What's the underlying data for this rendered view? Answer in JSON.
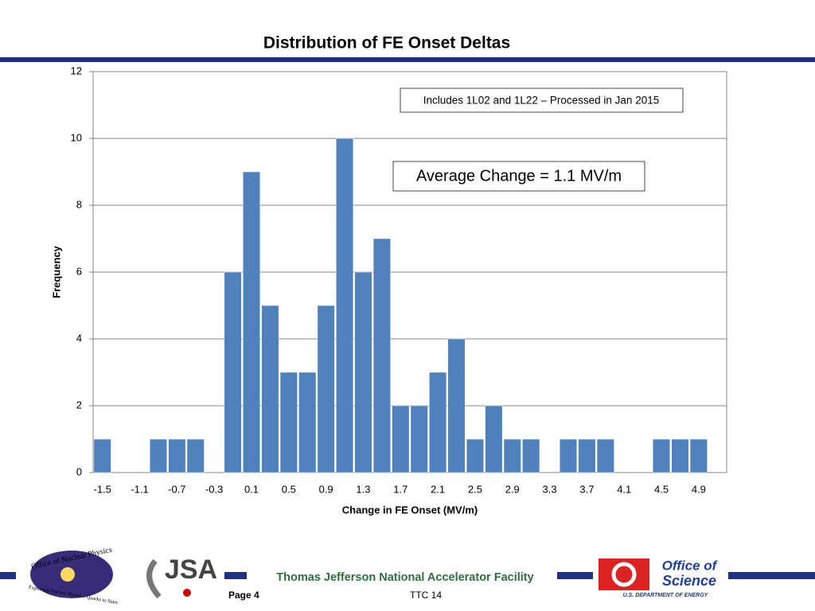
{
  "chart_data": {
    "type": "bar",
    "title": "Distribution of FE Onset Deltas",
    "xlabel": "Change in FE Onset (MV/m)",
    "ylabel": "Frequency",
    "categories": [
      "-1.5",
      null,
      "-1.1",
      null,
      "-0.7",
      null,
      "-0.3",
      null,
      "0.1",
      null,
      "0.5",
      null,
      "0.9",
      null,
      "1.3",
      null,
      "1.7",
      null,
      "2.1",
      null,
      "2.5",
      null,
      "2.9",
      null,
      "3.3",
      null,
      "3.7",
      null,
      "4.1",
      null,
      "4.5",
      null,
      "4.9",
      null
    ],
    "values": [
      1,
      0,
      0,
      1,
      1,
      1,
      0,
      6,
      9,
      5,
      3,
      3,
      5,
      10,
      6,
      7,
      2,
      2,
      3,
      4,
      1,
      2,
      1,
      1,
      0,
      1,
      1,
      1,
      0,
      0,
      1,
      1,
      1,
      0
    ],
    "color": "#4f81bd",
    "ylim": [
      0,
      12
    ],
    "yticks": [
      0,
      2,
      4,
      6,
      8,
      10,
      12
    ],
    "grid": true,
    "annotations": [
      "Includes 1L02 and 1L22 – Processed in Jan 2015",
      "Average Change = 1.1 MV/m"
    ]
  },
  "footer": {
    "facility": "Thomas Jefferson National Accelerator Facility",
    "page": "Page 4",
    "event": "TTC 14",
    "logos": {
      "nuclear_physics": "Office of Nuclear Physics",
      "nuclear_motto": "Exploring Nuclear Matter – Quarks to Stars",
      "jsa": "JSA",
      "science_1": "Office of",
      "science_2": "Science",
      "doe": "U.S. DEPARTMENT OF ENERGY"
    }
  }
}
